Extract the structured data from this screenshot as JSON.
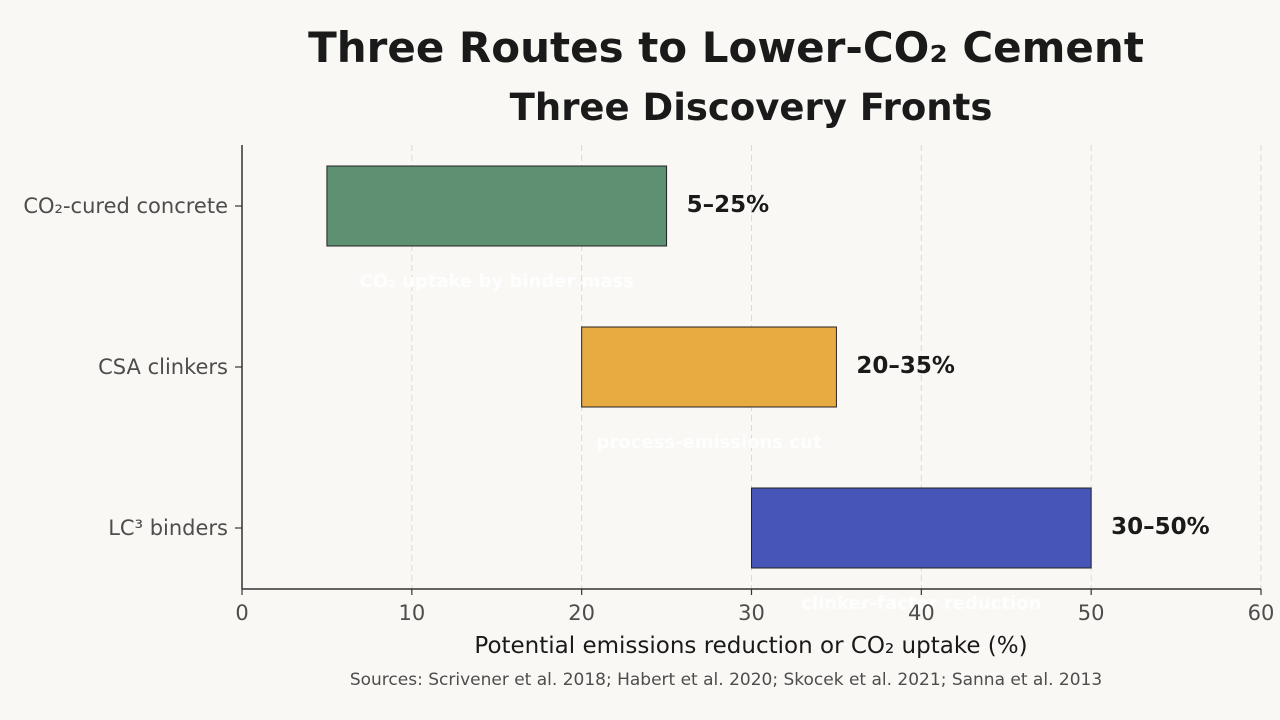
{
  "chart_data": {
    "type": "bar",
    "orientation": "horizontal",
    "style": "floating-range",
    "title": "Three Routes to Lower-CO₂ Cement",
    "subtitle": "Three Discovery Fronts",
    "xlabel": "Potential emissions reduction or CO₂ uptake (%)",
    "ylabel": "",
    "xlim": [
      0,
      60
    ],
    "xticks": [
      0,
      10,
      20,
      30,
      40,
      50,
      60
    ],
    "grid": "vertical-dashed",
    "categories": [
      "CO₂-cured concrete",
      "CSA clinkers",
      "LC³ binders"
    ],
    "ranges": [
      {
        "category": "CO₂-cured concrete",
        "low": 5,
        "high": 25,
        "label": "5–25%",
        "note": "CO₂ uptake by binder mass",
        "color": "#5e9072"
      },
      {
        "category": "CSA clinkers",
        "low": 20,
        "high": 35,
        "label": "20–35%",
        "note": "process-emissions cut",
        "color": "#e8ab42"
      },
      {
        "category": "LC³ binders",
        "low": 30,
        "high": 50,
        "label": "30–50%",
        "note": "clinker-factor reduction",
        "color": "#4754b8"
      }
    ],
    "source": "Sources: Scrivener et al. 2018; Habert et al. 2020; Skocek et al. 2021; Sanna et al. 2013"
  }
}
